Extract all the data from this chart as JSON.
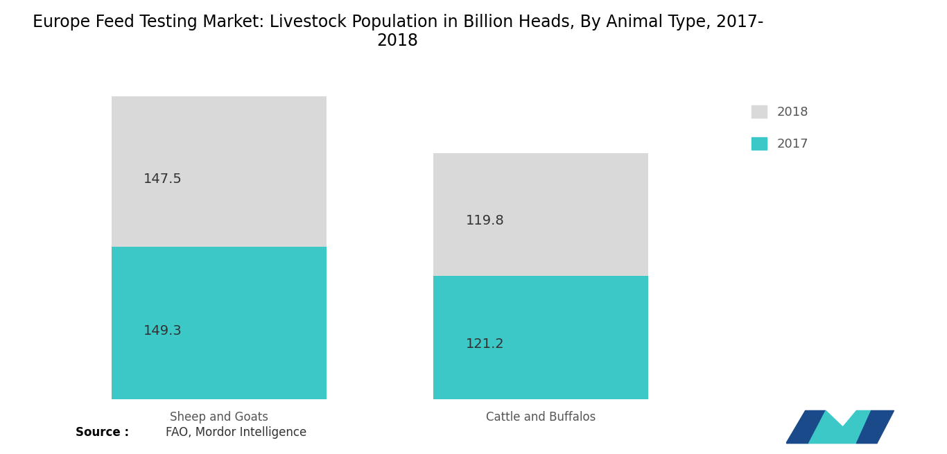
{
  "title": "Europe Feed Testing Market: Livestock Population in Billion Heads, By Animal Type, 2017-\n2018",
  "categories": [
    "Sheep and Goats",
    "Cattle and Buffalos"
  ],
  "values_2017": [
    149.3,
    121.2
  ],
  "values_2018": [
    147.5,
    119.8
  ],
  "color_2017": "#3dc8c8",
  "color_2018": "#d9d9d9",
  "source_bold": "Source :",
  "source_text": "FAO, Mordor Intelligence",
  "background_color": "#ffffff",
  "title_fontsize": 17,
  "label_fontsize": 14,
  "tick_fontsize": 12,
  "ylim": [
    0,
    320
  ]
}
